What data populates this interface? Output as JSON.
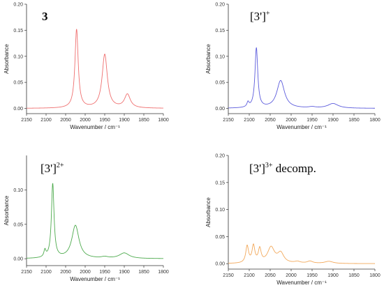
{
  "chart_data": [
    {
      "type": "line",
      "title_main": "3",
      "title_sup": "",
      "title_suffix": "",
      "title_bold": true,
      "xlabel": "Wavenumber / cm⁻¹",
      "ylabel": "Absorbance",
      "xlim": [
        2150,
        1800
      ],
      "ylim": [
        -0.01,
        0.2
      ],
      "xticks": [
        2150,
        2100,
        2050,
        2000,
        1950,
        1900,
        1850,
        1800
      ],
      "yticks": [
        0.0,
        0.05,
        0.1,
        0.15,
        0.2
      ],
      "ytick_labels": [
        "0.00",
        "0.05",
        "0.10",
        "0.15",
        "0.20"
      ],
      "color": "#ef6f6f",
      "baseline": 0.0,
      "peaks": [
        {
          "x": 2022,
          "height": 0.151,
          "width": 5
        },
        {
          "x": 1950,
          "height": 0.103,
          "width": 8
        },
        {
          "x": 1892,
          "height": 0.026,
          "width": 9
        }
      ]
    },
    {
      "type": "line",
      "title_main": "[3']",
      "title_sup": "+",
      "title_suffix": "",
      "title_bold": false,
      "xlabel": "Wavenumber / cm⁻¹",
      "ylabel": "Absorbance",
      "xlim": [
        2150,
        1800
      ],
      "ylim": [
        -0.01,
        0.2
      ],
      "xticks": [
        2150,
        2100,
        2050,
        2000,
        1950,
        1900,
        1850,
        1800
      ],
      "yticks": [
        0.0,
        0.05,
        0.1,
        0.15,
        0.2
      ],
      "ytick_labels": [
        "0.00",
        "0.05",
        "0.10",
        "0.15",
        "0.20"
      ],
      "color": "#5b5bdc",
      "baseline": 0.0,
      "peaks": [
        {
          "x": 2103,
          "height": 0.009,
          "width": 3
        },
        {
          "x": 2083,
          "height": 0.115,
          "width": 4
        },
        {
          "x": 2025,
          "height": 0.053,
          "width": 11
        },
        {
          "x": 1950,
          "height": 0.002,
          "width": 10
        },
        {
          "x": 1900,
          "height": 0.009,
          "width": 15
        }
      ]
    },
    {
      "type": "line",
      "title_main": "[3']",
      "title_sup": "2+",
      "title_suffix": "",
      "title_bold": false,
      "xlabel": "Wavenumber / cm⁻¹",
      "ylabel": "Absorbance",
      "xlim": [
        2150,
        1800
      ],
      "ylim": [
        -0.01,
        0.15
      ],
      "xticks": [
        2150,
        2100,
        2050,
        2000,
        1950,
        1900,
        1850,
        1800
      ],
      "yticks": [
        0.0,
        0.05,
        0.1
      ],
      "ytick_labels": [
        "0.00",
        "0.05",
        "0.10"
      ],
      "color": "#4caa4c",
      "baseline": 0.0,
      "peaks": [
        {
          "x": 2103,
          "height": 0.01,
          "width": 3
        },
        {
          "x": 2083,
          "height": 0.108,
          "width": 4
        },
        {
          "x": 2025,
          "height": 0.048,
          "width": 11
        },
        {
          "x": 1950,
          "height": 0.002,
          "width": 10
        },
        {
          "x": 1900,
          "height": 0.008,
          "width": 15
        }
      ]
    },
    {
      "type": "line",
      "title_main": "[3']",
      "title_sup": "3+",
      "title_suffix": " decomp.",
      "title_bold": false,
      "xlabel": "Wavenumber / cm⁻¹",
      "ylabel": "Absorbance",
      "xlim": [
        2150,
        1800
      ],
      "ylim": [
        -0.01,
        0.2
      ],
      "xticks": [
        2150,
        2100,
        2050,
        2000,
        1950,
        1900,
        1850,
        1800
      ],
      "yticks": [
        0.0,
        0.05,
        0.1,
        0.15,
        0.2
      ],
      "ytick_labels": [
        "0.00",
        "0.05",
        "0.10",
        "0.15",
        "0.20"
      ],
      "color": "#f2a85a",
      "baseline": 0.0,
      "peaks": [
        {
          "x": 2105,
          "height": 0.031,
          "width": 4
        },
        {
          "x": 2090,
          "height": 0.031,
          "width": 4
        },
        {
          "x": 2075,
          "height": 0.025,
          "width": 4
        },
        {
          "x": 2048,
          "height": 0.029,
          "width": 10
        },
        {
          "x": 2025,
          "height": 0.018,
          "width": 9
        },
        {
          "x": 1985,
          "height": 0.003,
          "width": 8
        },
        {
          "x": 1955,
          "height": 0.004,
          "width": 8
        },
        {
          "x": 1910,
          "height": 0.004,
          "width": 12
        }
      ]
    }
  ]
}
